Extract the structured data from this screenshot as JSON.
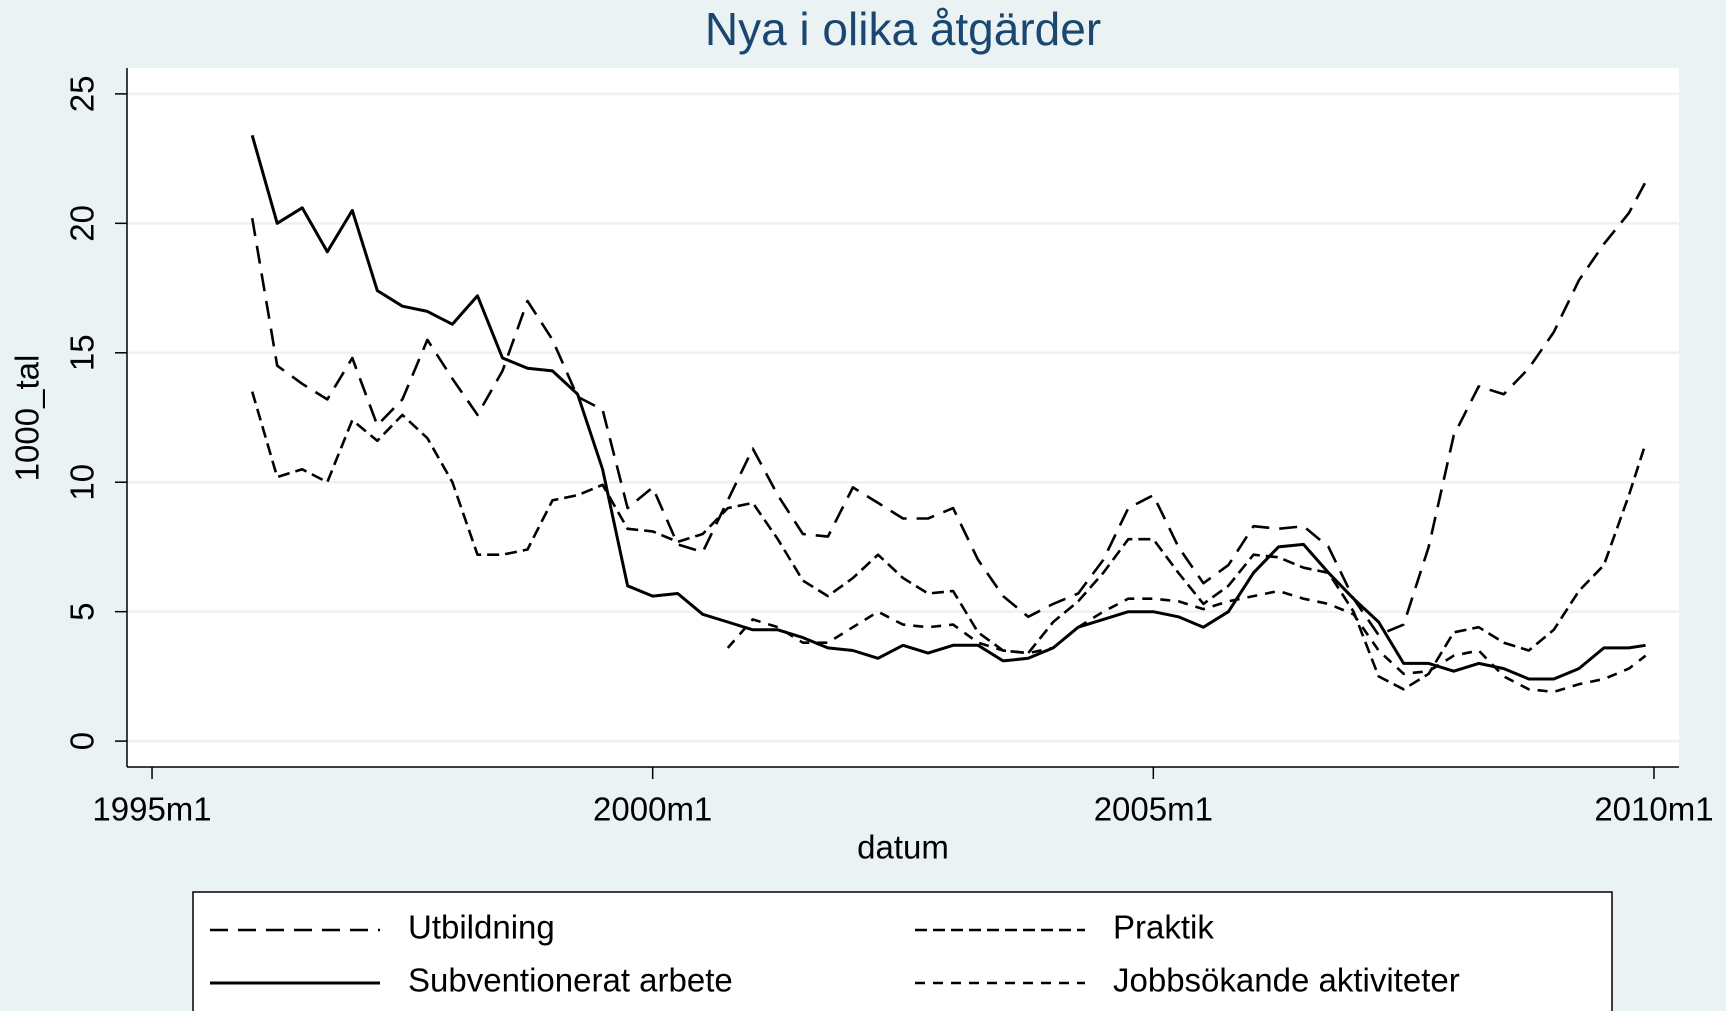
{
  "chart_data": {
    "type": "line",
    "title": "Nya i olika åtgärder",
    "x_label": "datum",
    "y_label": "1000_tal",
    "x": [
      "1996m1",
      "1996m4",
      "1996m7",
      "1996m10",
      "1997m1",
      "1997m4",
      "1997m7",
      "1997m10",
      "1998m1",
      "1998m4",
      "1998m7",
      "1998m10",
      "1999m1",
      "1999m4",
      "1999m7",
      "1999m10",
      "2000m1",
      "2000m4",
      "2000m7",
      "2000m10",
      "2001m1",
      "2001m4",
      "2001m7",
      "2001m10",
      "2002m1",
      "2002m4",
      "2002m7",
      "2002m10",
      "2003m1",
      "2003m4",
      "2003m7",
      "2003m10",
      "2004m1",
      "2004m4",
      "2004m7",
      "2004m10",
      "2005m1",
      "2005m4",
      "2005m7",
      "2005m10",
      "2006m1",
      "2006m4",
      "2006m7",
      "2006m10",
      "2007m1",
      "2007m4",
      "2007m7",
      "2007m10",
      "2008m1",
      "2008m4",
      "2008m7",
      "2008m10",
      "2009m1",
      "2009m4",
      "2009m7",
      "2009m10",
      "2009m12"
    ],
    "series": [
      {
        "name": "Utbildning",
        "color": "#000000",
        "dash": "18 10",
        "values": [
          20.2,
          14.5,
          13.8,
          13.2,
          14.8,
          12.2,
          13.2,
          15.5,
          14.0,
          12.6,
          14.3,
          17.0,
          15.5,
          13.3,
          12.8,
          9.0,
          9.8,
          7.6,
          7.3,
          9.3,
          11.3,
          9.5,
          8.0,
          7.9,
          9.8,
          9.2,
          8.6,
          8.6,
          9.0,
          7.0,
          5.6,
          4.8,
          5.3,
          5.7,
          7.0,
          9.0,
          9.5,
          7.5,
          6.1,
          6.8,
          8.3,
          8.2,
          8.3,
          7.5,
          5.5,
          4.1,
          4.5,
          7.5,
          11.8,
          13.7,
          13.4,
          14.4,
          15.8,
          17.8,
          19.2,
          20.4,
          21.6
        ]
      },
      {
        "name": "Praktik",
        "color": "#000000",
        "dash": "12 6",
        "values": [
          13.5,
          10.2,
          10.5,
          10.0,
          12.4,
          11.6,
          12.6,
          11.7,
          10.0,
          7.2,
          7.2,
          7.4,
          9.3,
          9.5,
          9.9,
          8.2,
          8.1,
          7.7,
          8.0,
          9.0,
          9.2,
          7.8,
          6.2,
          5.6,
          6.3,
          7.2,
          6.3,
          5.7,
          5.8,
          4.2,
          3.5,
          3.4,
          4.6,
          5.4,
          6.5,
          7.8,
          7.8,
          6.5,
          5.3,
          6.0,
          7.2,
          7.1,
          6.7,
          6.5,
          5.0,
          2.5,
          2.0,
          2.6,
          4.2,
          4.4,
          3.8,
          3.5,
          4.3,
          5.8,
          6.8,
          9.5,
          11.5
        ]
      },
      {
        "name": "Subventionerat arbete",
        "color": "#000000",
        "dash": "none",
        "values": [
          23.4,
          20.0,
          20.6,
          18.9,
          20.5,
          17.4,
          16.8,
          16.6,
          16.1,
          17.2,
          14.8,
          14.4,
          14.3,
          13.4,
          10.5,
          6.0,
          5.6,
          5.7,
          4.9,
          4.6,
          4.3,
          4.3,
          4.0,
          3.6,
          3.5,
          3.2,
          3.7,
          3.4,
          3.7,
          3.7,
          3.1,
          3.2,
          3.6,
          4.4,
          4.7,
          5.0,
          5.0,
          4.8,
          4.4,
          5.0,
          6.5,
          7.5,
          7.6,
          6.5,
          5.5,
          4.6,
          3.0,
          3.0,
          2.7,
          3.0,
          2.8,
          2.4,
          2.4,
          2.8,
          3.6,
          3.6,
          3.7
        ]
      },
      {
        "name": "Jobbsökande aktiviteter",
        "color": "#000000",
        "dash": "10 8",
        "values": [
          null,
          null,
          null,
          null,
          null,
          null,
          null,
          null,
          null,
          null,
          null,
          null,
          null,
          null,
          null,
          null,
          null,
          null,
          null,
          3.6,
          4.7,
          4.4,
          3.8,
          3.8,
          4.4,
          5.0,
          4.5,
          4.4,
          4.5,
          3.8,
          3.5,
          3.4,
          3.6,
          4.4,
          5.0,
          5.5,
          5.5,
          5.4,
          5.1,
          5.4,
          5.6,
          5.8,
          5.5,
          5.3,
          4.9,
          3.5,
          2.6,
          2.7,
          3.3,
          3.5,
          2.5,
          2.0,
          1.9,
          2.2,
          2.4,
          2.8,
          3.3
        ]
      }
    ],
    "xlim": [
      "1994m10",
      "2010m4"
    ],
    "xticks": [
      "1995m1",
      "2000m1",
      "2005m1",
      "2010m1"
    ],
    "ylim": [
      -1,
      26
    ],
    "yticks": [
      0,
      5,
      10,
      15,
      20,
      25
    ],
    "grid": true,
    "legend": "bottom"
  }
}
